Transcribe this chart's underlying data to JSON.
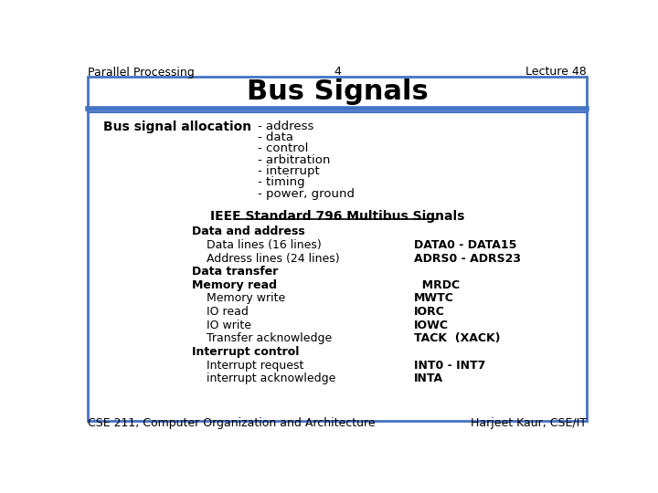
{
  "header_left": "Parallel Processing",
  "header_center": "4",
  "header_right": "Lecture 48",
  "title": "Bus Signals",
  "footer_left": "CSE 211, Computer Organization and Architecture",
  "footer_right": "Harjeet Kaur, CSE/IT",
  "bus_signal_label": "Bus signal allocation",
  "bus_signal_items": [
    "- address",
    "- data",
    "- control",
    "- arbitration",
    "- interrupt",
    "- timing",
    "- power, ground"
  ],
  "ieee_title": "IEEE Standard 796 Multibus Signals",
  "table_rows": [
    {
      "indent": 0,
      "label": "Data and address",
      "value": ""
    },
    {
      "indent": 1,
      "label": "Data lines (16 lines)",
      "value": "DATA0 - DATA15"
    },
    {
      "indent": 1,
      "label": "Address lines (24 lines)",
      "value": "ADRS0 - ADRS23"
    },
    {
      "indent": 0,
      "label": "Data transfer",
      "value": ""
    },
    {
      "indent": 0,
      "label": "Memory read",
      "value": "  MRDC"
    },
    {
      "indent": 1,
      "label": "Memory write",
      "value": "MWTC"
    },
    {
      "indent": 1,
      "label": "IO read",
      "value": "IORC"
    },
    {
      "indent": 1,
      "label": "IO write",
      "value": "IOWC"
    },
    {
      "indent": 1,
      "label": "Transfer acknowledge",
      "value": "TACK  (XACK)"
    },
    {
      "indent": 0,
      "label": "Interrupt control",
      "value": ""
    },
    {
      "indent": 1,
      "label": "Interrupt request",
      "value": "INT0 - INT7"
    },
    {
      "indent": 1,
      "label": "interrupt acknowledge",
      "value": "INTA"
    }
  ],
  "bg_color": "#ffffff",
  "border_color": "#4472c4",
  "header_bar_color": "#4472c4",
  "text_color": "#000000",
  "title_color": "#000000"
}
